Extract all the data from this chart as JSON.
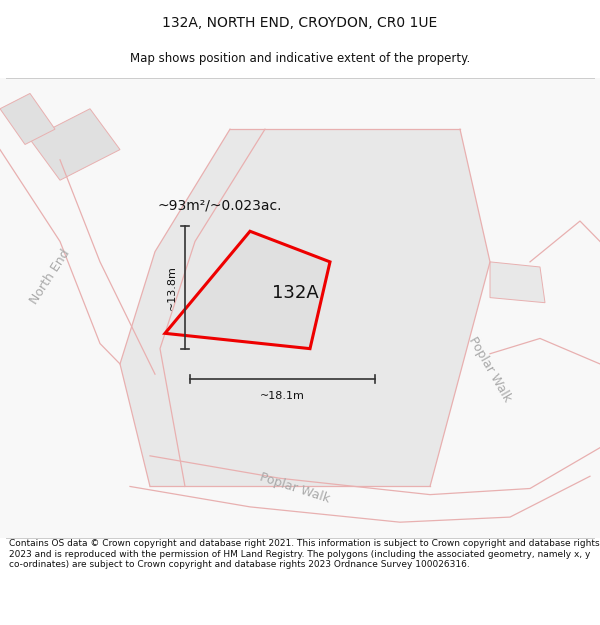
{
  "title": "132A, NORTH END, CROYDON, CR0 1UE",
  "subtitle": "Map shows position and indicative extent of the property.",
  "footer": "Contains OS data © Crown copyright and database right 2021. This information is subject to Crown copyright and database rights 2023 and is reproduced with the permission of HM Land Registry. The polygons (including the associated geometry, namely x, y co-ordinates) are subject to Crown copyright and database rights 2023 Ordnance Survey 100026316.",
  "area_label": "~93m²/~0.023ac.",
  "plot_label": "132A",
  "dim_width": "~18.1m",
  "dim_height": "~13.8m",
  "road_label_bottom": "Poplar Walk",
  "road_label_right": "Poplar Walk",
  "road_label_left": "North End",
  "map_bg": "#f5f5f5",
  "block_fill": "#e8e8e8",
  "road_fill": "#ffffff",
  "road_line_color": "#e8b0b0",
  "building_line_color": "#d09090",
  "plot_outline_color": "#ee0000",
  "dim_line_color": "#333333",
  "title_fontsize": 10,
  "subtitle_fontsize": 8.5,
  "footer_fontsize": 6.5,
  "label_color": "#cccccc",
  "text_color": "#111111"
}
